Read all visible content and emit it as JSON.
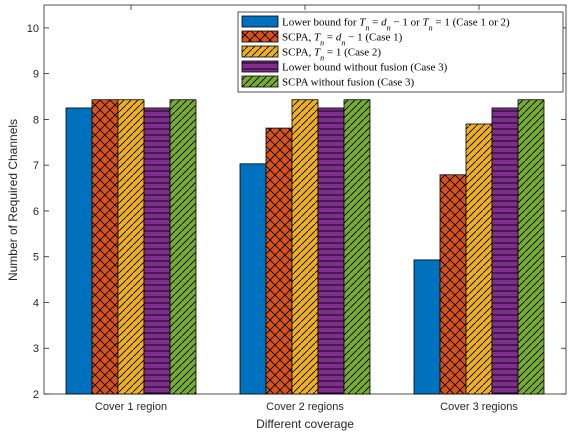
{
  "chart_data": {
    "type": "bar",
    "categories": [
      "Cover 1 region",
      "Cover 2 regions",
      "Cover 3 regions"
    ],
    "xlabel": "Different coverage",
    "ylabel": "Number of Required Channels",
    "ylim": [
      2,
      10.5
    ],
    "yticks": [
      "2",
      "3",
      "4",
      "5",
      "6",
      "7",
      "8",
      "9",
      "10"
    ],
    "grid": false,
    "legend_position": "top-right",
    "series": [
      {
        "name": "Lower bound for T_n = d_n − 1 or T_n = 1 (Case 1 or 2)",
        "values": [
          8.25,
          7.03,
          4.93
        ],
        "color": "#0072BD",
        "pattern": "solid"
      },
      {
        "name": "SCPA, T_n = d_n − 1 (Case 1)",
        "values": [
          8.43,
          7.81,
          6.79
        ],
        "color": "#D95319",
        "pattern": "crosshatch"
      },
      {
        "name": "SCPA, T_n = 1 (Case 2)",
        "values": [
          8.43,
          8.43,
          7.9
        ],
        "color": "#EDB120",
        "pattern": "diagonal"
      },
      {
        "name": "Lower bound without fusion (Case 3)",
        "values": [
          8.25,
          8.25,
          8.25
        ],
        "color": "#7E2F8E",
        "pattern": "horizontal"
      },
      {
        "name": "SCPA without fusion (Case 3)",
        "values": [
          8.43,
          8.43,
          8.43
        ],
        "color": "#77AC30",
        "pattern": "diagonal"
      }
    ]
  }
}
